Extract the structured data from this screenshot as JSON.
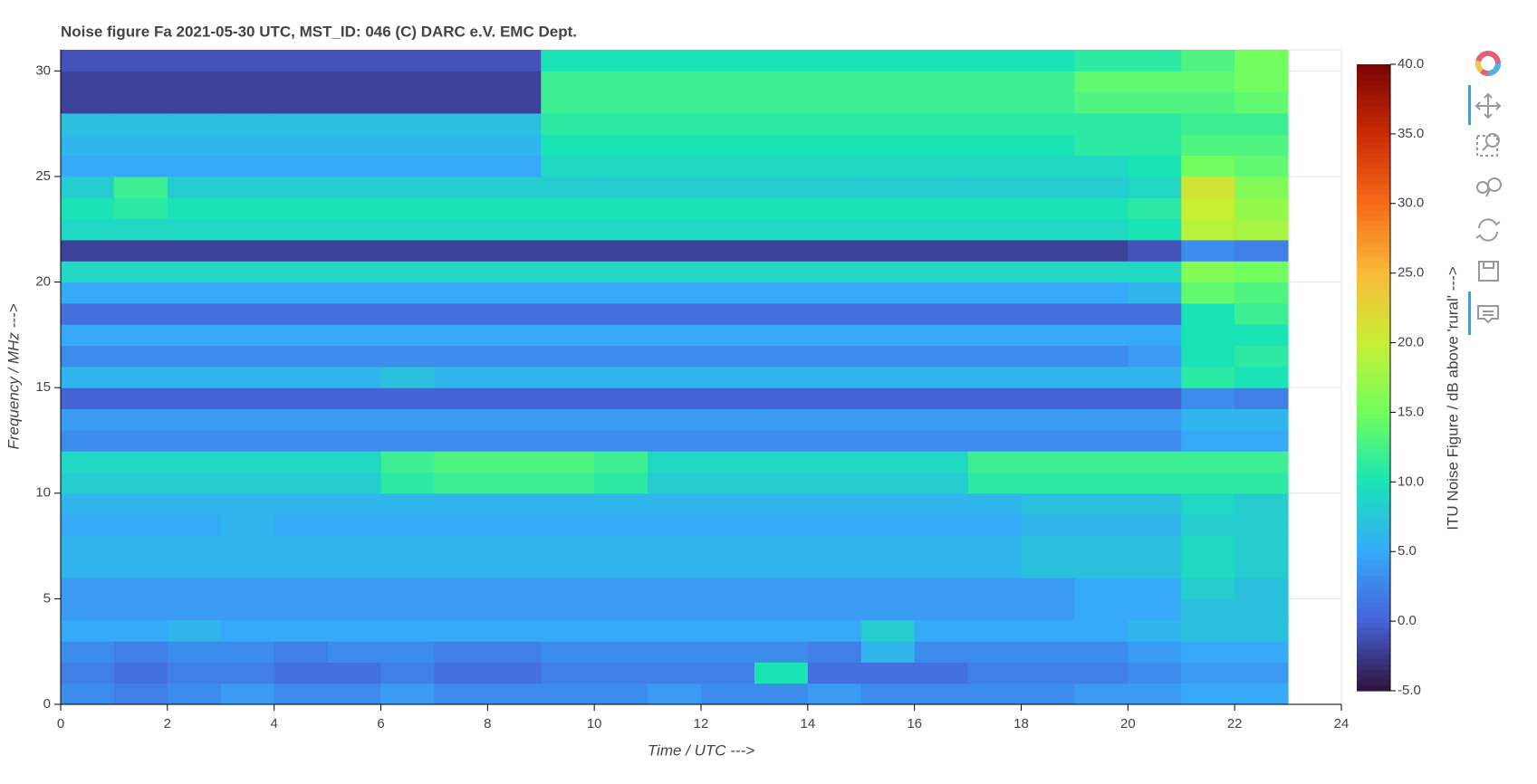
{
  "chart_data": {
    "type": "heatmap",
    "title": "Noise figure Fa  2021-05-30  UTC,  MST_ID:  046   (C) DARC e.V. EMC Dept.",
    "x_label": "Time / UTC --->",
    "y_label": "Frequency / MHz --->",
    "xbins": [
      0,
      1,
      2,
      3,
      4,
      5,
      6,
      7,
      8,
      9,
      10,
      11,
      12,
      13,
      14,
      15,
      16,
      17,
      18,
      19,
      20,
      21,
      22,
      23
    ],
    "ybins": [
      0,
      1,
      2,
      3,
      4,
      5,
      6,
      7,
      8,
      9,
      10,
      11,
      12,
      13,
      14,
      15,
      16,
      17,
      18,
      19,
      20,
      21,
      22,
      23,
      24,
      25,
      26,
      27,
      28,
      29,
      30,
      31
    ],
    "values": [
      [
        3,
        2,
        3,
        4,
        3,
        3,
        4,
        3,
        3,
        3,
        3,
        4,
        3,
        3,
        4,
        3,
        3,
        3,
        3,
        4,
        4,
        5,
        5
      ],
      [
        2,
        1,
        2,
        2,
        1,
        1,
        2,
        1,
        1,
        2,
        2,
        2,
        2,
        10,
        1,
        1,
        1,
        2,
        2,
        2,
        3,
        4,
        4
      ],
      [
        3,
        2,
        3,
        3,
        2,
        3,
        3,
        2,
        2,
        3,
        3,
        3,
        3,
        3,
        2,
        6,
        3,
        3,
        3,
        3,
        4,
        5,
        5
      ],
      [
        5,
        5,
        6,
        5,
        5,
        5,
        5,
        5,
        5,
        5,
        5,
        5,
        5,
        5,
        5,
        8,
        5,
        5,
        5,
        5,
        6,
        7,
        7
      ],
      [
        4,
        4,
        4,
        4,
        4,
        4,
        4,
        4,
        4,
        4,
        4,
        4,
        4,
        4,
        4,
        4,
        4,
        4,
        4,
        5,
        5,
        7,
        7
      ],
      [
        4,
        4,
        4,
        4,
        4,
        4,
        4,
        4,
        4,
        4,
        4,
        4,
        4,
        4,
        4,
        4,
        4,
        4,
        4,
        5,
        5,
        8,
        7
      ],
      [
        6,
        6,
        6,
        6,
        6,
        6,
        6,
        6,
        6,
        6,
        6,
        6,
        6,
        6,
        6,
        6,
        6,
        6,
        7,
        7,
        7,
        9,
        8
      ],
      [
        6,
        6,
        6,
        6,
        6,
        6,
        6,
        6,
        6,
        6,
        6,
        6,
        6,
        6,
        6,
        6,
        6,
        6,
        7,
        7,
        7,
        9,
        8
      ],
      [
        5,
        5,
        5,
        6,
        5,
        5,
        5,
        5,
        5,
        5,
        5,
        5,
        5,
        5,
        5,
        5,
        5,
        5,
        6,
        6,
        6,
        8,
        8
      ],
      [
        6,
        6,
        6,
        6,
        6,
        6,
        6,
        6,
        6,
        6,
        6,
        6,
        6,
        6,
        6,
        6,
        6,
        6,
        7,
        7,
        7,
        9,
        8
      ],
      [
        8,
        8,
        8,
        8,
        8,
        8,
        11,
        12,
        12,
        12,
        11,
        8,
        8,
        8,
        8,
        8,
        8,
        11,
        11,
        11,
        11,
        11,
        11
      ],
      [
        9,
        9,
        9,
        9,
        9,
        9,
        12,
        13,
        13,
        13,
        12,
        9,
        9,
        9,
        9,
        9,
        9,
        12,
        12,
        12,
        12,
        12,
        12
      ],
      [
        3,
        3,
        3,
        3,
        3,
        3,
        3,
        3,
        3,
        3,
        3,
        3,
        3,
        3,
        3,
        3,
        3,
        3,
        3,
        3,
        3,
        5,
        5
      ],
      [
        4,
        4,
        4,
        4,
        4,
        4,
        4,
        4,
        4,
        4,
        4,
        4,
        4,
        4,
        4,
        4,
        4,
        4,
        4,
        4,
        4,
        6,
        6
      ],
      [
        0,
        0,
        0,
        0,
        0,
        0,
        0,
        0,
        0,
        0,
        0,
        0,
        0,
        0,
        0,
        0,
        0,
        0,
        0,
        0,
        0,
        3,
        2
      ],
      [
        6,
        6,
        6,
        6,
        6,
        6,
        7,
        6,
        6,
        6,
        6,
        6,
        6,
        6,
        6,
        6,
        6,
        6,
        6,
        6,
        6,
        11,
        10
      ],
      [
        3,
        3,
        3,
        3,
        3,
        3,
        3,
        3,
        3,
        3,
        3,
        3,
        3,
        3,
        3,
        3,
        3,
        3,
        3,
        3,
        4,
        10,
        11
      ],
      [
        5,
        5,
        5,
        5,
        5,
        5,
        5,
        5,
        5,
        5,
        5,
        5,
        5,
        5,
        5,
        5,
        5,
        5,
        5,
        5,
        5,
        10,
        10
      ],
      [
        1,
        1,
        1,
        1,
        1,
        1,
        1,
        1,
        1,
        1,
        1,
        1,
        1,
        1,
        1,
        1,
        1,
        1,
        1,
        1,
        1,
        10,
        12
      ],
      [
        5,
        5,
        5,
        5,
        5,
        5,
        5,
        5,
        5,
        5,
        5,
        5,
        5,
        5,
        5,
        5,
        5,
        5,
        5,
        5,
        6,
        14,
        13
      ],
      [
        9,
        9,
        9,
        9,
        9,
        9,
        9,
        9,
        9,
        9,
        9,
        9,
        9,
        9,
        9,
        9,
        9,
        9,
        9,
        9,
        9,
        16,
        15
      ],
      [
        -2,
        -2,
        -2,
        -2,
        -2,
        -2,
        -2,
        -2,
        -2,
        -2,
        -2,
        -2,
        -2,
        -2,
        -2,
        -2,
        -2,
        -2,
        -2,
        -2,
        -1,
        3,
        2
      ],
      [
        9,
        9,
        9,
        9,
        9,
        9,
        9,
        9,
        9,
        9,
        9,
        9,
        9,
        9,
        9,
        9,
        9,
        9,
        9,
        9,
        10,
        19,
        18
      ],
      [
        10,
        11,
        10,
        10,
        10,
        10,
        10,
        10,
        10,
        10,
        10,
        10,
        10,
        10,
        10,
        10,
        10,
        10,
        10,
        10,
        11,
        20,
        17
      ],
      [
        8,
        12,
        8,
        8,
        8,
        8,
        8,
        8,
        8,
        8,
        8,
        8,
        8,
        8,
        8,
        8,
        8,
        8,
        8,
        8,
        9,
        21,
        16
      ],
      [
        5,
        5,
        5,
        5,
        5,
        5,
        5,
        5,
        5,
        9,
        9,
        9,
        9,
        9,
        9,
        9,
        9,
        9,
        9,
        9,
        10,
        15,
        14
      ],
      [
        6,
        6,
        6,
        6,
        6,
        6,
        6,
        6,
        6,
        10,
        10,
        10,
        10,
        10,
        10,
        10,
        10,
        10,
        10,
        11,
        11,
        13,
        13
      ],
      [
        7,
        7,
        7,
        7,
        7,
        7,
        7,
        7,
        7,
        11,
        11,
        11,
        11,
        11,
        11,
        11,
        11,
        11,
        11,
        11,
        11,
        12,
        12
      ],
      [
        -2,
        -2,
        -2,
        -2,
        -2,
        -2,
        -2,
        -2,
        -2,
        12,
        12,
        12,
        12,
        12,
        12,
        12,
        12,
        12,
        12,
        13,
        13,
        13,
        14
      ],
      [
        -2,
        -2,
        -2,
        -2,
        -2,
        -2,
        -2,
        -2,
        -2,
        12,
        12,
        12,
        12,
        12,
        12,
        12,
        12,
        12,
        12,
        14,
        14,
        14,
        15
      ],
      [
        -1,
        -1,
        -1,
        -1,
        -1,
        -1,
        -1,
        -1,
        -1,
        10,
        10,
        10,
        10,
        10,
        10,
        10,
        10,
        10,
        10,
        11,
        11,
        13,
        15
      ]
    ],
    "xlim": [
      0,
      24
    ],
    "xticks": [
      0,
      2,
      4,
      6,
      8,
      10,
      12,
      14,
      16,
      18,
      20,
      22,
      24
    ],
    "ylim": [
      0,
      31
    ],
    "yticks": [
      0,
      5,
      10,
      15,
      20,
      25,
      30
    ],
    "grid": true,
    "colormap": [
      "#30123b",
      "#4662d7",
      "#36aaf9",
      "#1ae4b6",
      "#72fe5e",
      "#c8ef34",
      "#faba39",
      "#f66b19",
      "#ca2a04",
      "#7a0403"
    ],
    "colorbar": {
      "title": "ITU Noise Figure / dB above 'rural' --->",
      "lim": [
        -5,
        40
      ],
      "ticks": [
        {
          "value": -5,
          "label": "-5.0"
        },
        {
          "value": 0,
          "label": "0.0"
        },
        {
          "value": 5,
          "label": "5.0"
        },
        {
          "value": 10,
          "label": "10.0"
        },
        {
          "value": 15,
          "label": "15.0"
        },
        {
          "value": 20,
          "label": "20.0"
        },
        {
          "value": 25,
          "label": "25.0"
        },
        {
          "value": 30,
          "label": "30.0"
        },
        {
          "value": 35,
          "label": "35.0"
        },
        {
          "value": 40,
          "label": "40.0"
        }
      ]
    }
  }
}
